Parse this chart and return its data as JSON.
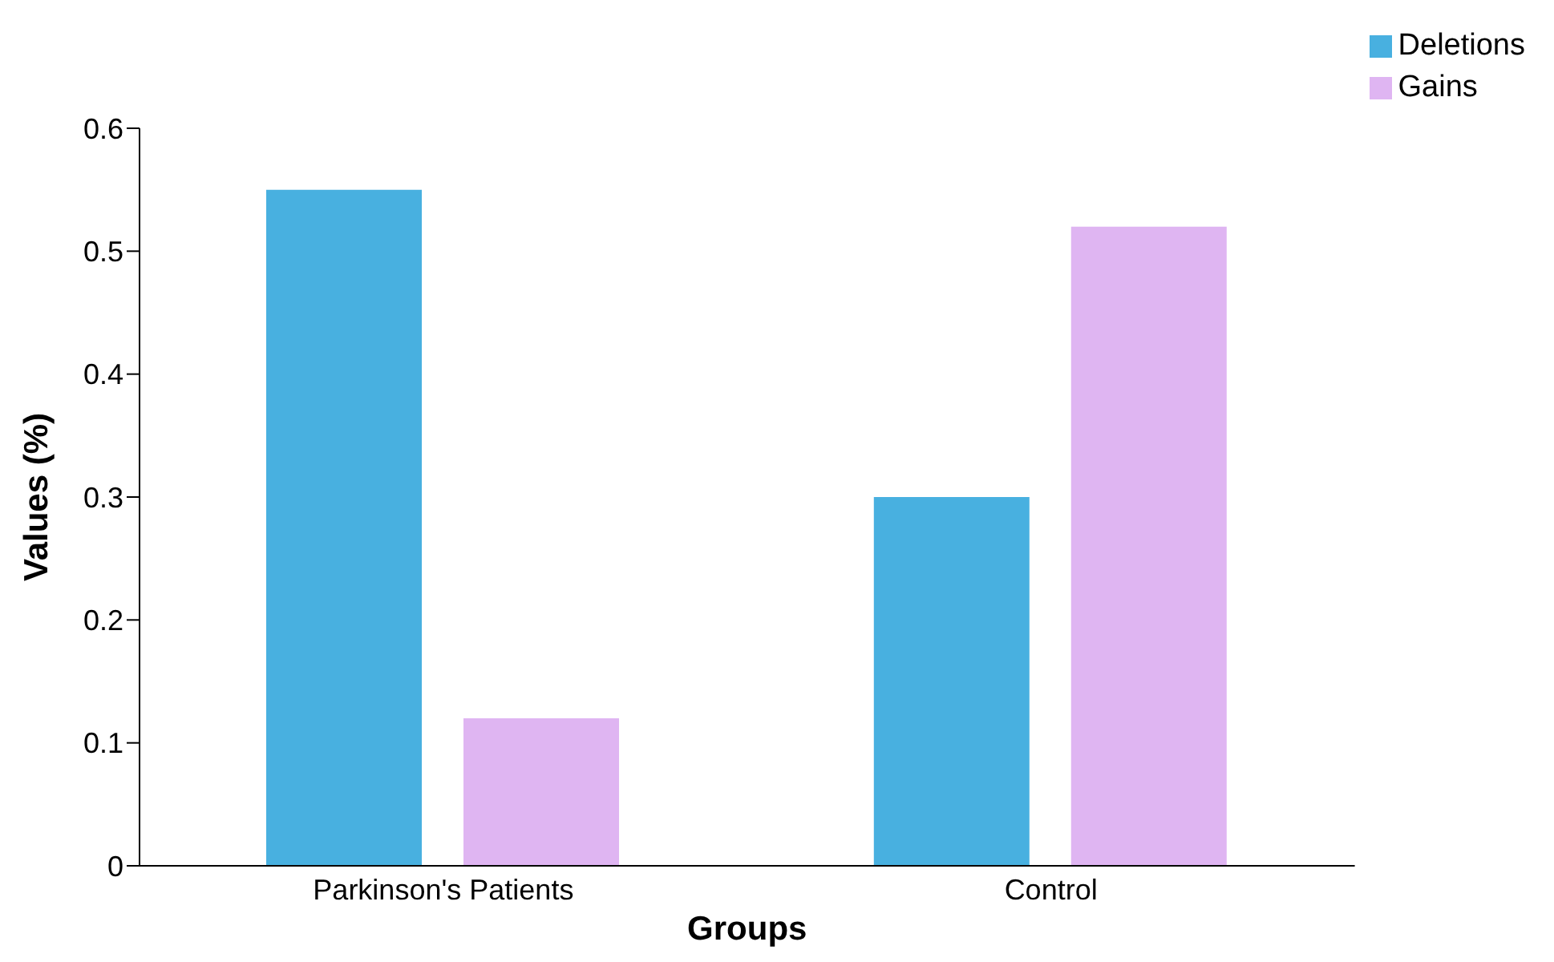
{
  "chart_data": {
    "type": "bar",
    "xlabel": "Groups",
    "ylabel": "Values (%)",
    "categories": [
      "Parkinson's Patients",
      "Control"
    ],
    "series": [
      {
        "name": "Deletions",
        "color": "#48b0e0",
        "values": [
          0.55,
          0.3
        ]
      },
      {
        "name": "Gains",
        "color": "#dfb5f2",
        "values": [
          0.12,
          0.52
        ]
      }
    ],
    "ylim": [
      0,
      0.6
    ],
    "yticks": [
      0,
      0.1,
      0.2,
      0.3,
      0.4,
      0.5,
      0.6
    ],
    "grid": false,
    "legend": "top right"
  }
}
